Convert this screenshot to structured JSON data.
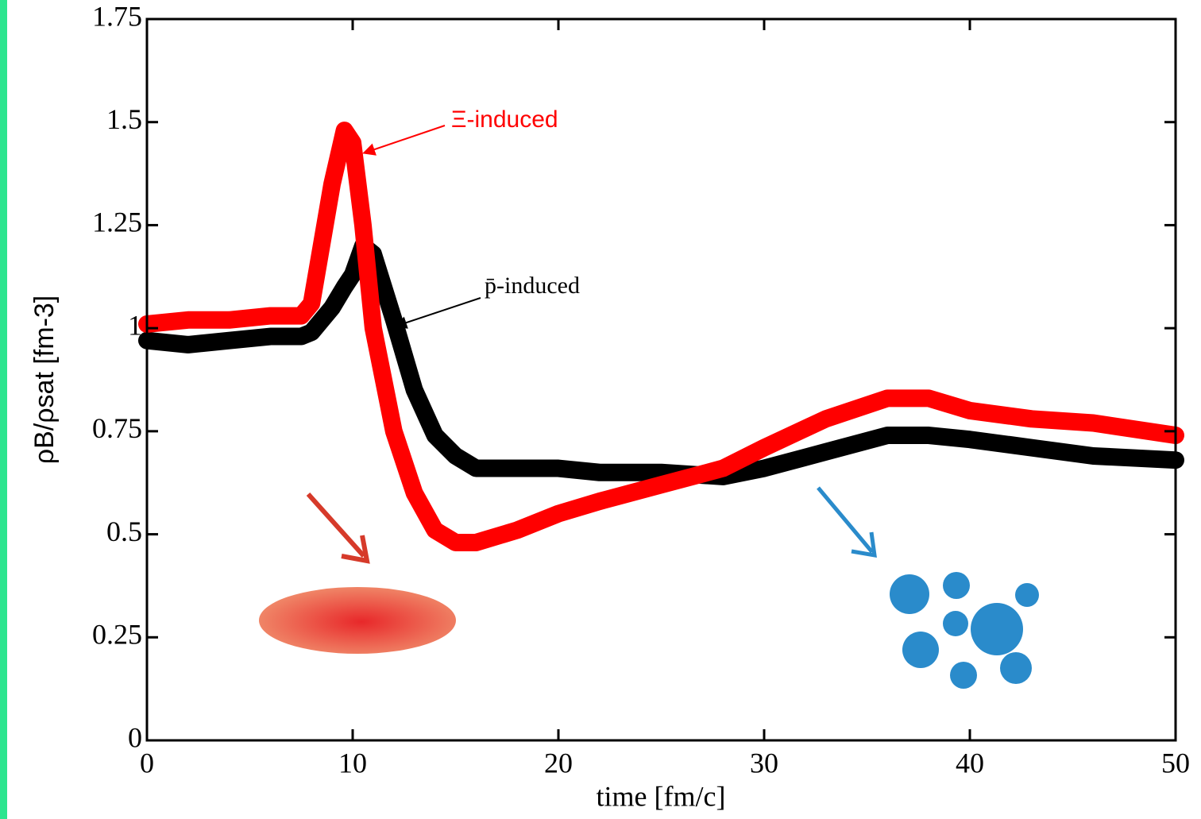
{
  "chart_data": {
    "type": "line",
    "x_label": "time [fm/c]",
    "y_label": "ρB/ρsat [fm-3]",
    "x": [
      0,
      2,
      4,
      6,
      7.5,
      8,
      9,
      9.6,
      10,
      10.5,
      11,
      12,
      13,
      14,
      15,
      16,
      18,
      20,
      22,
      25,
      28,
      30,
      33,
      36,
      38,
      40,
      43,
      46,
      50
    ],
    "series": [
      {
        "name": "p̄-induced",
        "color": "#000000",
        "values": [
          0.97,
          0.96,
          0.97,
          0.98,
          0.98,
          0.99,
          1.05,
          1.1,
          1.13,
          1.2,
          1.18,
          1.02,
          0.85,
          0.74,
          0.69,
          0.66,
          0.66,
          0.66,
          0.65,
          0.65,
          0.64,
          0.66,
          0.7,
          0.74,
          0.74,
          0.73,
          0.71,
          0.69,
          0.68
        ]
      },
      {
        "name": "Ξ-induced",
        "color": "#ff0000",
        "values": [
          1.01,
          1.02,
          1.02,
          1.03,
          1.03,
          1.06,
          1.35,
          1.48,
          1.45,
          1.25,
          1.0,
          0.75,
          0.6,
          0.51,
          0.48,
          0.48,
          0.51,
          0.55,
          0.58,
          0.62,
          0.66,
          0.71,
          0.78,
          0.83,
          0.83,
          0.8,
          0.78,
          0.77,
          0.74
        ]
      }
    ],
    "xlim": [
      0,
      50
    ],
    "xticks": [
      0,
      10,
      20,
      30,
      40,
      50
    ],
    "ylim": [
      0,
      1.75
    ],
    "yticks": [
      0,
      0.25,
      0.5,
      0.75,
      1,
      1.25,
      1.5,
      1.75
    ]
  }
}
